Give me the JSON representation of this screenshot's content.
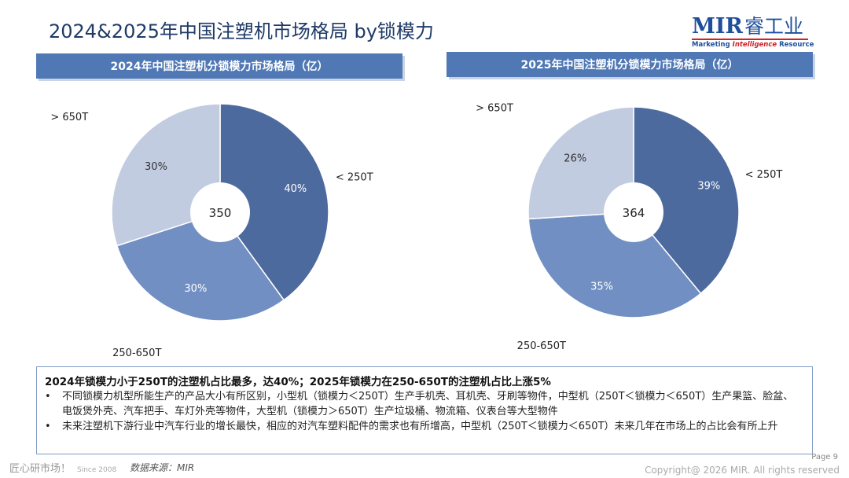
{
  "page": {
    "title": "2024&2025年中国注塑机市场格局 by锁模力",
    "page_number": "Page 9",
    "copyright": "Copyright@ 2026 MIR. All rights reserved"
  },
  "logo": {
    "mark": "MIR",
    "cn_name": "睿工业",
    "tagline_part1": "Marketing ",
    "tagline_part2": "Intelligence",
    "tagline_part3": " Resource"
  },
  "colors": {
    "header": "#4f78b5",
    "slice_lt250": "#4d6a9e",
    "slice_250_650": "#718fc2",
    "slice_gt650": "#c2cce0"
  },
  "chart_data": [
    {
      "type": "pie",
      "title": "2024年中国注塑机分锁模力市场格局（亿）",
      "center_label": "350",
      "slices": [
        {
          "label": "< 250T",
          "value": 40,
          "display": "40%"
        },
        {
          "label": "250-650T",
          "value": 30,
          "display": "30%"
        },
        {
          "label": "> 650T",
          "value": 30,
          "display": "30%"
        }
      ]
    },
    {
      "type": "pie",
      "title": "2025年中国注塑机分锁模力市场格局（亿）",
      "center_label": "364",
      "slices": [
        {
          "label": "< 250T",
          "value": 39,
          "display": "39%"
        },
        {
          "label": "250-650T",
          "value": 35,
          "display": "35%"
        },
        {
          "label": "> 650T",
          "value": 26,
          "display": "26%"
        }
      ]
    }
  ],
  "summary": {
    "headline": "2024年锁模力小于250T的注塑机占比最多，达40%；2025年锁模力在250-650T的注塑机占比上涨5%",
    "bullet_char": "•",
    "bullets": [
      "不同锁模力机型所能生产的产品大小有所区别，小型机（锁模力＜250T）生产手机壳、耳机壳、牙刷等物件，中型机（250T＜锁模力＜650T）生产果篮、脸盆、电饭煲外壳、汽车把手、车灯外壳等物件，大型机（锁模力＞650T）生产垃圾桶、物流箱、仪表台等大型物件",
      "未来注塑机下游行业中汽车行业的增长最快，相应的对汽车塑料配件的需求也有所增高，中型机（250T＜锁模力＜650T）未来几年在市场上的占比会有所上升"
    ]
  },
  "footer": {
    "brand": "匠心研市场！",
    "since": "Since 2008",
    "source": "数据来源：MIR"
  }
}
